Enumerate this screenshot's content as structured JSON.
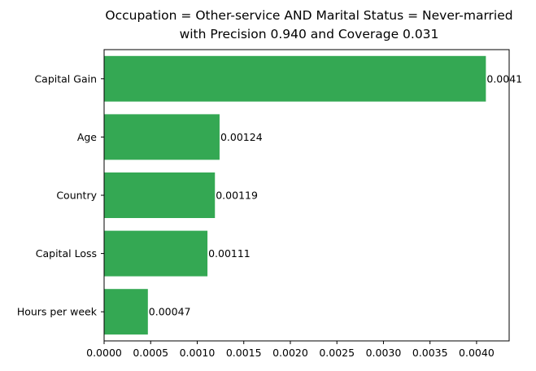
{
  "chart_data": {
    "type": "bar",
    "orientation": "horizontal",
    "title_lines": [
      "Occupation = Other-service AND Marital Status = Never-married",
      "with Precision 0.940 and Coverage 0.031"
    ],
    "categories": [
      "Capital Gain",
      "Age",
      "Country",
      "Capital Loss",
      "Hours per week"
    ],
    "values": [
      0.0041,
      0.00124,
      0.00119,
      0.00111,
      0.00047
    ],
    "value_labels": [
      "0.0041",
      "0.00124",
      "0.00119",
      "0.00111",
      "0.00047"
    ],
    "xlim": [
      0,
      0.00435
    ],
    "x_ticks": [
      0,
      0.0005,
      0.001,
      0.0015,
      0.002,
      0.0025,
      0.003,
      0.0035,
      0.004
    ],
    "x_tick_labels": [
      "0.0000",
      "0.0005",
      "0.0010",
      "0.0015",
      "0.0020",
      "0.0025",
      "0.0030",
      "0.0035",
      "0.0040"
    ],
    "xlabel": "",
    "ylabel": "",
    "bar_color": "#34a853",
    "grid": false,
    "legend": "none"
  }
}
